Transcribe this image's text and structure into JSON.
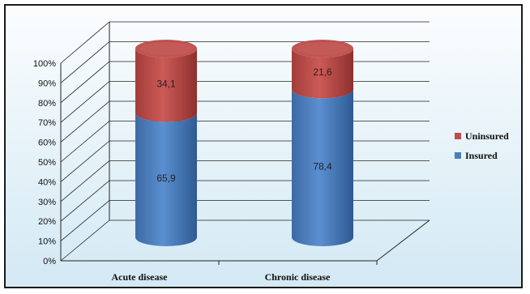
{
  "chart_data": {
    "type": "bar",
    "stacked": true,
    "style": "3d-cylinder",
    "categories": [
      "Acute disease",
      "Chronic disease"
    ],
    "series": [
      {
        "name": "Insured",
        "values": [
          65.9,
          78.4
        ],
        "labels": [
          "65,9",
          "78,4"
        ],
        "color": "#4a7ebb"
      },
      {
        "name": "Uninsured",
        "values": [
          34.1,
          21.6
        ],
        "labels": [
          "34,1",
          "21,6"
        ],
        "color": "#be4b48"
      }
    ],
    "yticks": [
      "0%",
      "10%",
      "20%",
      "30%",
      "40%",
      "50%",
      "60%",
      "70%",
      "80%",
      "90%",
      "100%"
    ],
    "ylim": [
      0,
      100
    ],
    "grid": true,
    "legend_position": "right",
    "legend_order": [
      "Uninsured",
      "Insured"
    ]
  }
}
